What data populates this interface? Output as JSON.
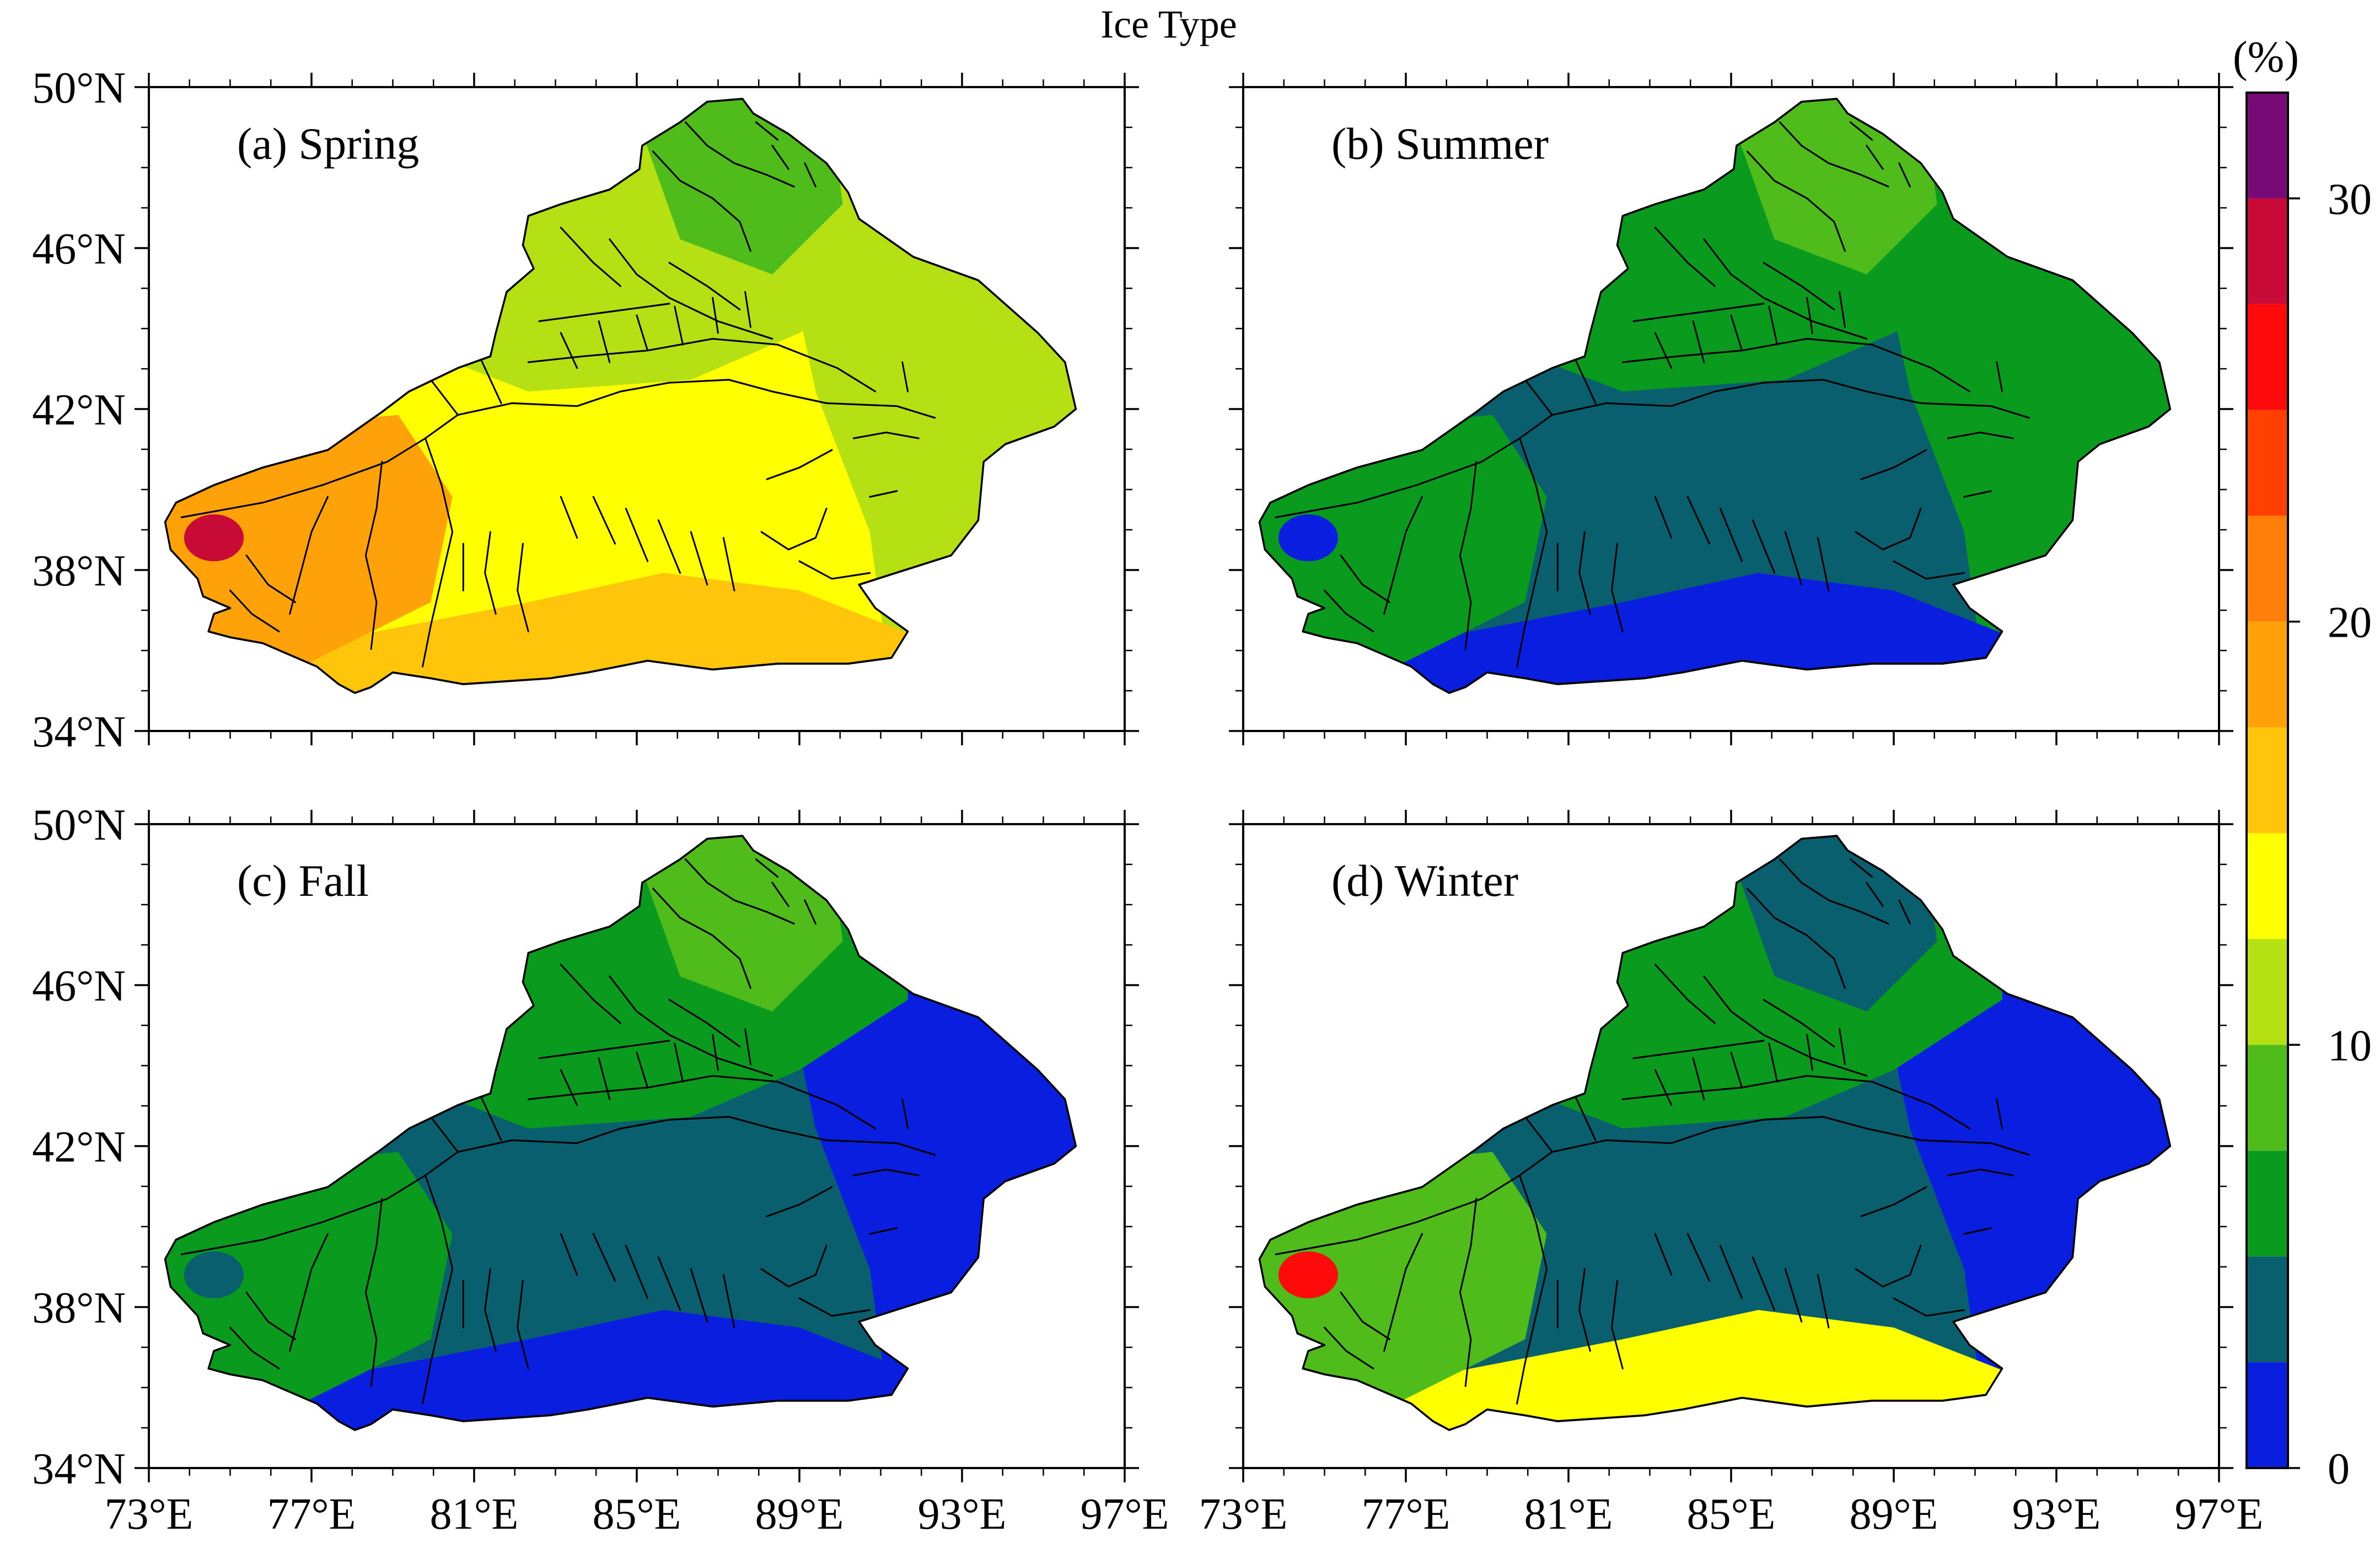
{
  "title": "Ice Type",
  "colorbar": {
    "unit": "(%)",
    "ticks": [
      {
        "value": 0,
        "label": "0"
      },
      {
        "value": 10,
        "label": "10"
      },
      {
        "value": 20,
        "label": "20"
      },
      {
        "value": 30,
        "label": "30"
      }
    ],
    "levels": [
      0,
      2.5,
      5,
      7.5,
      10,
      12.5,
      15,
      17.5,
      20,
      22.5,
      25,
      27.5,
      30,
      32.5
    ],
    "colors": [
      "#0a1ee0",
      "#0a5f6e",
      "#0a9a1e",
      "#4fbc1c",
      "#b4e014",
      "#ffff00",
      "#ffc50a",
      "#ffa20a",
      "#ff7f0a",
      "#ff4000",
      "#ff0a0a",
      "#c80a37",
      "#780a78"
    ]
  },
  "axes": {
    "lat_labels": [
      "50°N",
      "46°N",
      "42°N",
      "38°N",
      "34°N"
    ],
    "lon_labels": [
      "73°E",
      "77°E",
      "81°E",
      "85°E",
      "89°E",
      "93°E",
      "97°E"
    ],
    "lat_range": [
      34,
      50
    ],
    "lon_range": [
      73,
      97
    ]
  },
  "panels": [
    {
      "id": "a",
      "label": "(a) Spring",
      "colors": {
        "ne": "#4fbc1c",
        "east": "#b4e014",
        "north": "#b4e014",
        "center": "#ffff00",
        "south": "#ffc50a",
        "west": "#ffa20a",
        "hot": "#c80a37"
      }
    },
    {
      "id": "b",
      "label": "(b) Summer",
      "colors": {
        "ne": "#4fbc1c",
        "east": "#0a9a1e",
        "north": "#0a9a1e",
        "center": "#0a5f6e",
        "south": "#0a1ee0",
        "west": "#0a9a1e",
        "hot": "#0a1ee0"
      }
    },
    {
      "id": "c",
      "label": "(c) Fall",
      "colors": {
        "ne": "#4fbc1c",
        "east": "#0a1ee0",
        "north": "#0a9a1e",
        "center": "#0a5f6e",
        "south": "#0a1ee0",
        "west": "#0a9a1e",
        "hot": "#0a5f6e"
      }
    },
    {
      "id": "d",
      "label": "(d) Winter",
      "colors": {
        "ne": "#0a5f6e",
        "east": "#0a1ee0",
        "north": "#0a9a1e",
        "center": "#0a5f6e",
        "south": "#ffff00",
        "west": "#4fbc1c",
        "hot": "#ff0a0a"
      }
    }
  ]
}
